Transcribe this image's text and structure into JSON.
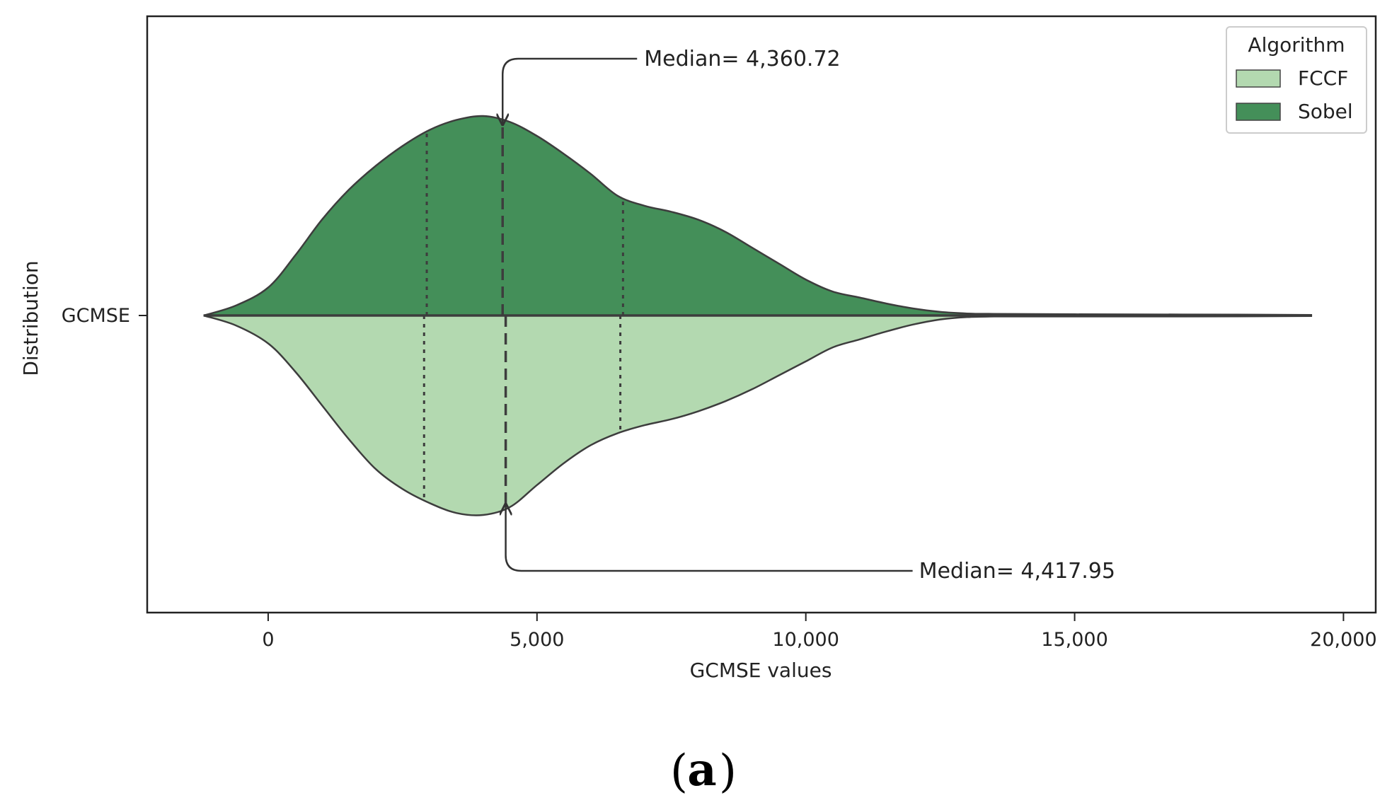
{
  "chart_data": {
    "type": "violin",
    "orientation": "horizontal",
    "split": true,
    "xlabel": "GCMSE values",
    "ylabel": "Distribution",
    "category": "GCMSE",
    "xlim": [
      -2250,
      20600
    ],
    "xticks": [
      0,
      5000,
      10000,
      15000,
      20000
    ],
    "xtick_labels": [
      "0",
      "5,000",
      "10,000",
      "15,000",
      "20,000"
    ],
    "grid": false,
    "legend": {
      "title": "Algorithm",
      "placement": "top-right"
    },
    "series": [
      {
        "name": "FCCF",
        "color": "#b3d9b0",
        "side": "bottom",
        "median": 4417.95,
        "quartiles": [
          2900,
          6550
        ],
        "density": [
          [
            -1200,
            0
          ],
          [
            -600,
            0.05
          ],
          [
            0,
            0.14
          ],
          [
            500,
            0.28
          ],
          [
            1000,
            0.45
          ],
          [
            1500,
            0.62
          ],
          [
            2000,
            0.77
          ],
          [
            2500,
            0.87
          ],
          [
            3000,
            0.94
          ],
          [
            3500,
            0.99
          ],
          [
            4000,
            1.0
          ],
          [
            4500,
            0.96
          ],
          [
            5000,
            0.85
          ],
          [
            5500,
            0.74
          ],
          [
            6000,
            0.65
          ],
          [
            6500,
            0.59
          ],
          [
            7000,
            0.55
          ],
          [
            7500,
            0.52
          ],
          [
            8000,
            0.48
          ],
          [
            8500,
            0.43
          ],
          [
            9000,
            0.37
          ],
          [
            9500,
            0.3
          ],
          [
            10000,
            0.23
          ],
          [
            10500,
            0.16
          ],
          [
            11000,
            0.12
          ],
          [
            11500,
            0.08
          ],
          [
            12000,
            0.045
          ],
          [
            12500,
            0.02
          ],
          [
            13000,
            0.008
          ],
          [
            13500,
            0.005
          ],
          [
            15000,
            0.005
          ],
          [
            17000,
            0.005
          ],
          [
            19400,
            0.003
          ]
        ]
      },
      {
        "name": "Sobel",
        "color": "#448f59",
        "side": "top",
        "median": 4360.72,
        "quartiles": [
          2950,
          6600
        ],
        "density": [
          [
            -1200,
            0
          ],
          [
            -600,
            0.05
          ],
          [
            0,
            0.14
          ],
          [
            500,
            0.3
          ],
          [
            1000,
            0.48
          ],
          [
            1500,
            0.63
          ],
          [
            2000,
            0.75
          ],
          [
            2500,
            0.85
          ],
          [
            3000,
            0.93
          ],
          [
            3500,
            0.98
          ],
          [
            4000,
            1.0
          ],
          [
            4500,
            0.97
          ],
          [
            5000,
            0.9
          ],
          [
            5500,
            0.81
          ],
          [
            6000,
            0.71
          ],
          [
            6500,
            0.6
          ],
          [
            7000,
            0.55
          ],
          [
            7500,
            0.52
          ],
          [
            8000,
            0.48
          ],
          [
            8500,
            0.42
          ],
          [
            9000,
            0.34
          ],
          [
            9500,
            0.26
          ],
          [
            10000,
            0.18
          ],
          [
            10500,
            0.12
          ],
          [
            11000,
            0.09
          ],
          [
            11500,
            0.06
          ],
          [
            12000,
            0.035
          ],
          [
            12500,
            0.018
          ],
          [
            13000,
            0.01
          ],
          [
            13500,
            0.008
          ],
          [
            15000,
            0.006
          ],
          [
            17000,
            0.005
          ],
          [
            19400,
            0.003
          ]
        ]
      }
    ],
    "annotations": [
      {
        "text": "Median= 4,360.72",
        "x": 4360.72,
        "target": "Sobel"
      },
      {
        "text": "Median= 4,417.95",
        "x": 4417.95,
        "target": "FCCF"
      }
    ]
  },
  "caption": {
    "open": "(",
    "label": "a",
    "close": ")"
  }
}
